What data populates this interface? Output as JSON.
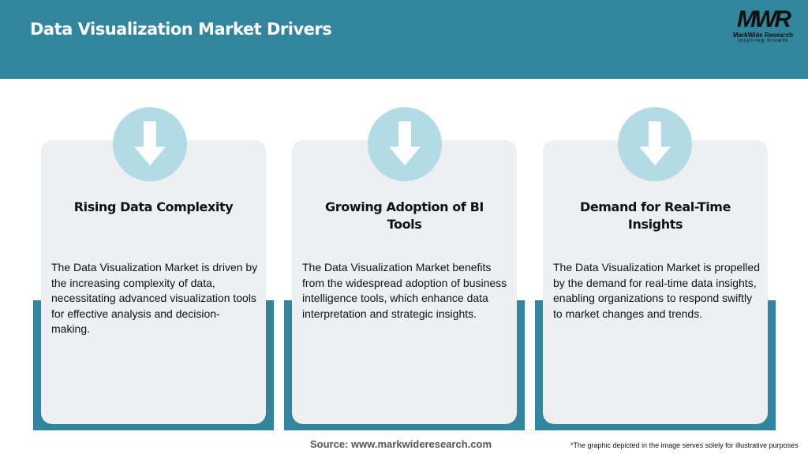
{
  "header": {
    "title": "Data Visualization Market Drivers",
    "logo": {
      "mark": "MWR",
      "name": "MarkWide Research",
      "tagline": "Inspiring Growth"
    }
  },
  "colors": {
    "header": "#31859c",
    "circle": "#b3dbe6",
    "card": "#eeeff1"
  },
  "cards": [
    {
      "icon": "arrow-down-icon",
      "title": "Rising Data Complexity",
      "text": "The Data Visualization Market is driven by the increasing complexity of data, necessitating advanced visualization tools for effective analysis and decision-making."
    },
    {
      "icon": "arrow-down-icon",
      "title": "Growing Adoption of BI Tools",
      "text": "The Data Visualization Market benefits from the widespread adoption of business intelligence tools, which enhance data interpretation and strategic insights."
    },
    {
      "icon": "arrow-down-icon",
      "title": "Demand for Real-Time Insights",
      "text": "The Data Visualization Market is propelled by the demand for real-time data insights, enabling organizations to respond swiftly to market changes and trends."
    }
  ],
  "footer": {
    "source": "Source: www.markwideresearch.com",
    "note": "*The graphic depicted in the image serves solely for illustrative purposes"
  }
}
